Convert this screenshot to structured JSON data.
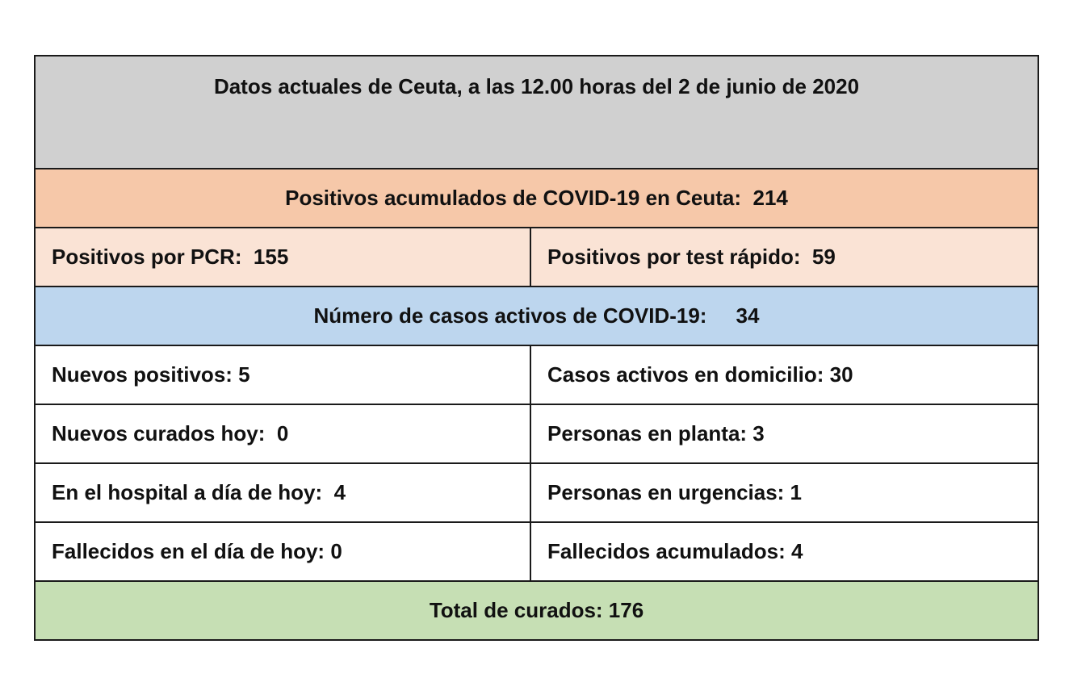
{
  "colors": {
    "title_bg": "#d0d0d0",
    "positives_header_bg": "#f6c8a9",
    "positives_detail_bg": "#fae3d5",
    "active_header_bg": "#bdd6ee",
    "body_bg": "#ffffff",
    "total_bg": "#c6dfb4",
    "border": "#1a1a1a"
  },
  "title": "Datos actuales de Ceuta, a las 12.00 horas del 2 de junio de 2020",
  "positives": {
    "header": "Positivos acumulados de COVID-19 en Ceuta:  214",
    "pcr": "Positivos por PCR:  155",
    "rapid_test": "Positivos por test rápido:  59"
  },
  "active": {
    "header": "Número de casos activos de COVID-19:     34"
  },
  "details": [
    {
      "left": "Nuevos positivos: 5",
      "right": "Casos activos en domicilio: 30"
    },
    {
      "left": "Nuevos curados hoy:  0",
      "right": "Personas en planta: 3"
    },
    {
      "left": "En el hospital a día de hoy:  4",
      "right": "Personas en urgencias: 1"
    },
    {
      "left": "Fallecidos en el día de hoy: 0",
      "right": "Fallecidos acumulados: 4"
    }
  ],
  "total": "Total de curados: 176"
}
